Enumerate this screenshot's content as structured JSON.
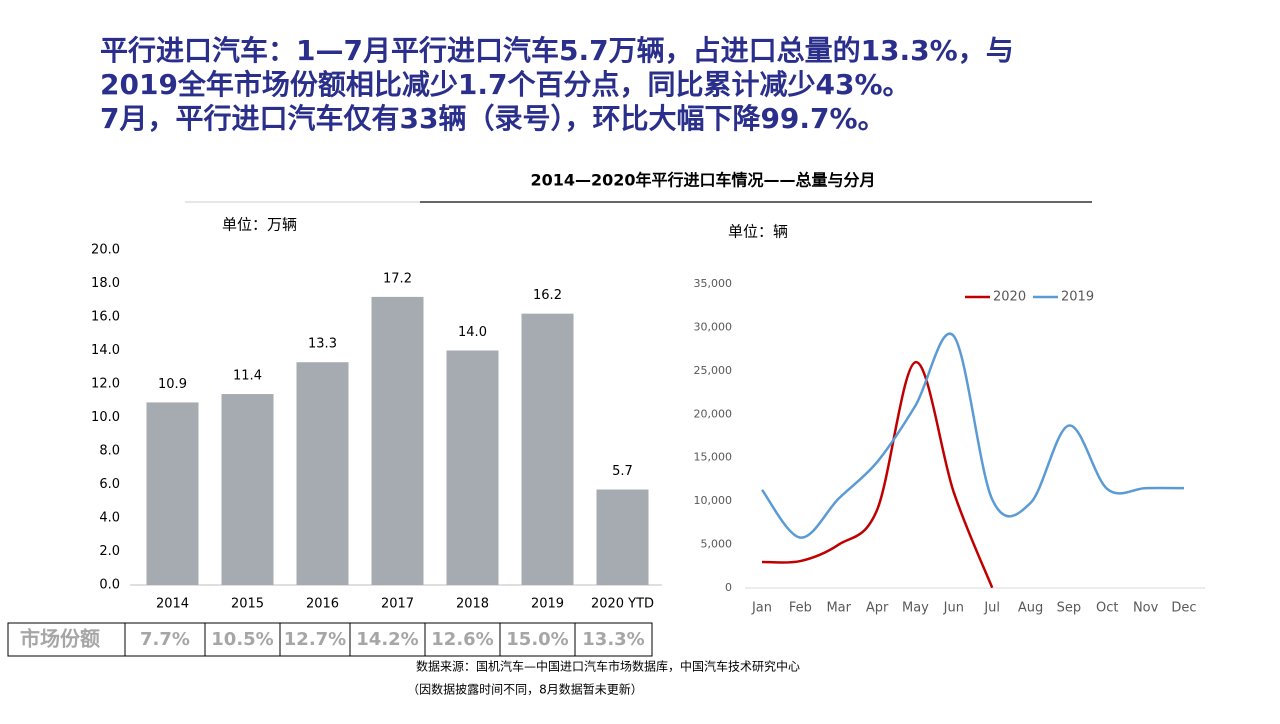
{
  "heading": [
    "平行进口汽车：1—7月平行进口汽车5.7万辆，占进口总量的13.3%，与",
    "2019全年市场份额相比减少1.7个百分点，同比累计减少43%。",
    "7月，平行进口汽车仅有33辆（录号），环比大幅下降99.7%。"
  ],
  "chart_data": [
    {
      "type": "bar",
      "title": "2014—2020年平行进口车情况——总量与分月",
      "unit": "单位：万辆",
      "categories": [
        "2014",
        "2015",
        "2016",
        "2017",
        "2018",
        "2019",
        "2020 YTD"
      ],
      "values": [
        10.9,
        11.4,
        13.3,
        17.2,
        14.0,
        16.2,
        5.7
      ],
      "value_labels": [
        "10.9",
        "11.4",
        "13.3",
        "17.2",
        "14.0",
        "16.2",
        "5.7"
      ],
      "color": "#a5abb1",
      "ylim": [
        0,
        20
      ],
      "yticks": [
        {
          "value": 0,
          "label": "0.0"
        },
        {
          "value": 2,
          "label": "2.0"
        },
        {
          "value": 4,
          "label": "4.0"
        },
        {
          "value": 6,
          "label": "6.0"
        },
        {
          "value": 8,
          "label": "8.0"
        },
        {
          "value": 10,
          "label": "10.0"
        },
        {
          "value": 12,
          "label": "12.0"
        },
        {
          "value": 14,
          "label": "14.0"
        },
        {
          "value": 16,
          "label": "16.0"
        },
        {
          "value": 18,
          "label": "18.0"
        },
        {
          "value": 20,
          "label": "20.0"
        }
      ]
    },
    {
      "type": "line",
      "unit": "单位：辆",
      "categories": [
        "Jan",
        "Feb",
        "Mar",
        "Apr",
        "May",
        "Jun",
        "Jul",
        "Aug",
        "Sep",
        "Oct",
        "Nov",
        "Dec"
      ],
      "series": [
        {
          "name": "2020",
          "color": "#c00000",
          "values": [
            3000,
            3100,
            5000,
            9000,
            26000,
            11000,
            33,
            null,
            null,
            null,
            null,
            null
          ]
        },
        {
          "name": "2019",
          "color": "#5b9bd5",
          "values": [
            11300,
            5800,
            10300,
            14500,
            21000,
            29000,
            10200,
            9800,
            18700,
            11400,
            11500,
            11500
          ]
        }
      ],
      "ylim": [
        0,
        35000
      ],
      "yticks": [
        0,
        {
          "value": 5000,
          "label": "5,000"
        },
        {
          "value": 10000,
          "label": "10,000"
        },
        {
          "value": 15000,
          "label": "15,000"
        },
        {
          "value": 20000,
          "label": "20,000"
        },
        {
          "value": 25000,
          "label": "25,000"
        },
        {
          "value": 30000,
          "label": "30,000"
        },
        {
          "value": 35000,
          "label": "35,000"
        }
      ],
      "legend": "top-right"
    }
  ],
  "table": {
    "header": "市场份额",
    "cells": [
      "7.7%",
      "10.5%",
      "12.7%",
      "14.2%",
      "12.6%",
      "15.0%",
      "13.3%"
    ]
  },
  "source": [
    "数据来源：国机汽车—中国进口汽车市场数据库，中国汽车技术研究中心",
    "（因数据披露时间不同，8月数据暂未更新）"
  ]
}
